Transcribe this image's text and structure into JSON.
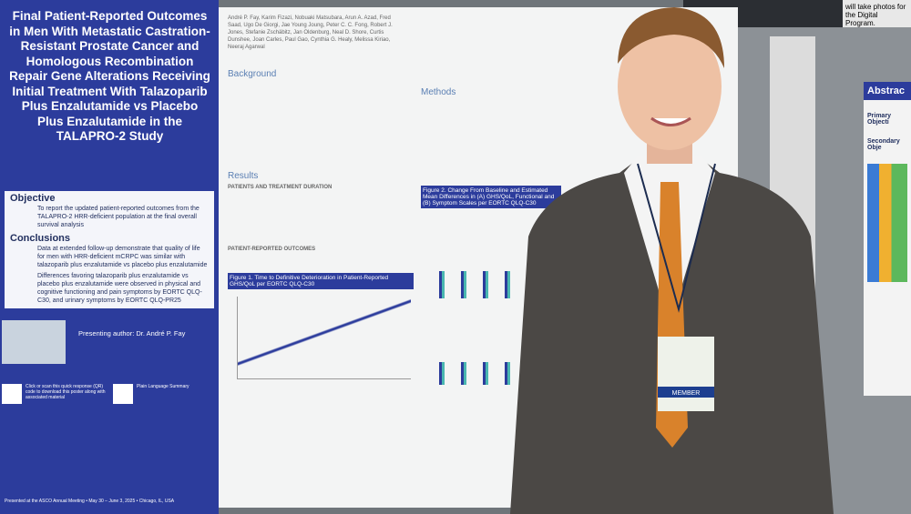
{
  "poster": {
    "title": "Final Patient-Reported Outcomes in Men With Metastatic Castration-Resistant Prostate Cancer and Homologous Recombination Repair Gene Alterations Receiving Initial Treatment With Talazoparib Plus Enzalutamide vs Placebo Plus Enzalutamide in the TALAPRO-2 Study",
    "objective_heading": "Objective",
    "objective_text": "To report the updated patient-reported outcomes from the TALAPRO-2 HRR-deficient population at the final overall survival analysis",
    "conclusions_heading": "Conclusions",
    "conclusions_text": [
      "Data at extended follow-up demonstrate that quality of life for men with HRR-deficient mCRPC was similar with talazoparib plus enzalutamide vs placebo plus enzalutamide",
      "Differences favoring talazoparib plus enzalutamide vs placebo plus enzalutamide were observed in physical and cognitive functioning and pain symptoms by EORTC QLQ-C30, and urinary symptoms by EORTC QLQ-PR25"
    ],
    "presenter": "Presenting author: Dr. André P. Fay",
    "authors": "André P. Fay, Karim Fizazi, Nobuaki Matsubara, Arun A. Azad, Fred Saad, Ugo De Giorgi, Jae Young Joung, Peter C. C. Fong, Robert J. Jones, Stefanie Zschäbitz, Jan Oldenburg, Neal D. Shore, Curtis Dunshee, Joan Carles, Paul Gao, Cynthia G. Healy, Melissa Kiriao, Neeraj Agarwal",
    "background": "Background",
    "methods": "Methods",
    "results": "Results",
    "results_sub": "PATIENTS AND TREATMENT DURATION",
    "pro_sub": "PATIENT-REPORTED OUTCOMES",
    "figure1_title": "Figure 1. Time to Definitive Deterioration in Patient-Reported GHS/QoL per EORTC QLQ-C30",
    "figure2_title": "Figure 2. Change From Baseline and Estimated Mean Differences in (A) GHS/QoL, Functional and (B) Symptom Scales per EORTC QLQ-C30",
    "qr_text": "Click or scan this quick response (QR) code to download this poster along with associated material",
    "plain_text": "Plain Language Summary",
    "footer": "Presented at the ASCO Annual Meeting • May 30 – June 3, 2025 • Chicago, IL, USA"
  },
  "badge": {
    "member": "MEMBER"
  },
  "right_poster": {
    "heading": "Abstrac",
    "lines": [
      "Primary Objecti",
      "Secondary Obje"
    ]
  },
  "sign": "will take photos for the Digital Program."
}
